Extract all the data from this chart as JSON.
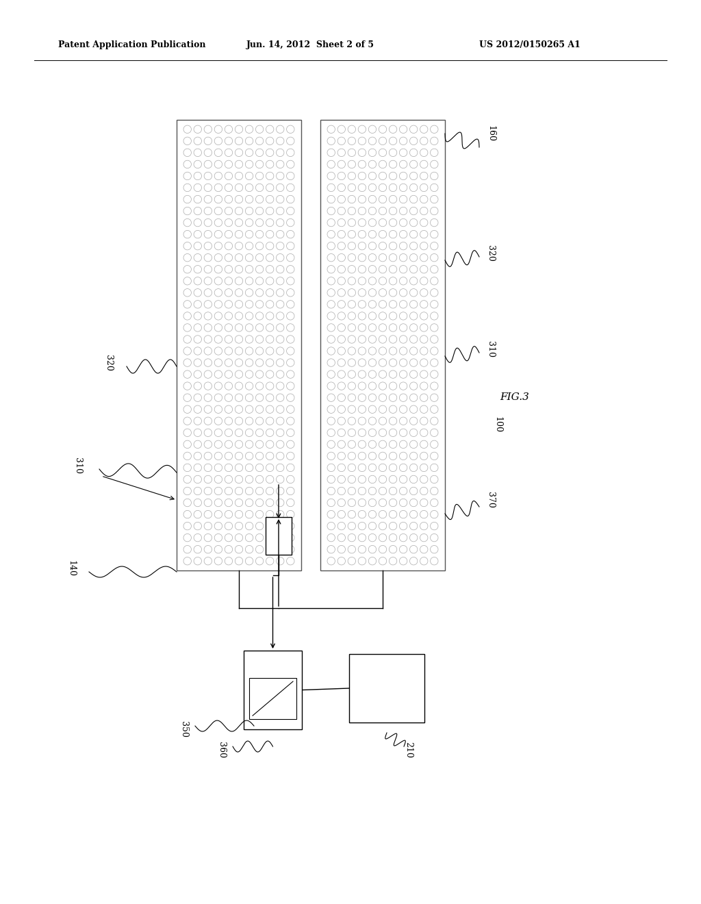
{
  "bg_color": "#ffffff",
  "header_text1": "Patent Application Publication",
  "header_text2": "Jun. 14, 2012  Sheet 2 of 5",
  "header_text3": "US 2012/0150265 A1",
  "fig_label": "FIG.3",
  "ref_100": "100",
  "ref_140": "140",
  "ref_160": "160",
  "ref_210": "210",
  "ref_310_left": "310",
  "ref_310_right": "310",
  "ref_320_left": "320",
  "ref_320_right": "320",
  "ref_350": "350",
  "ref_360": "360",
  "ref_370": "370",
  "dot_color": "#aaaaaa",
  "border_color": "#555555",
  "line_color": "#000000"
}
